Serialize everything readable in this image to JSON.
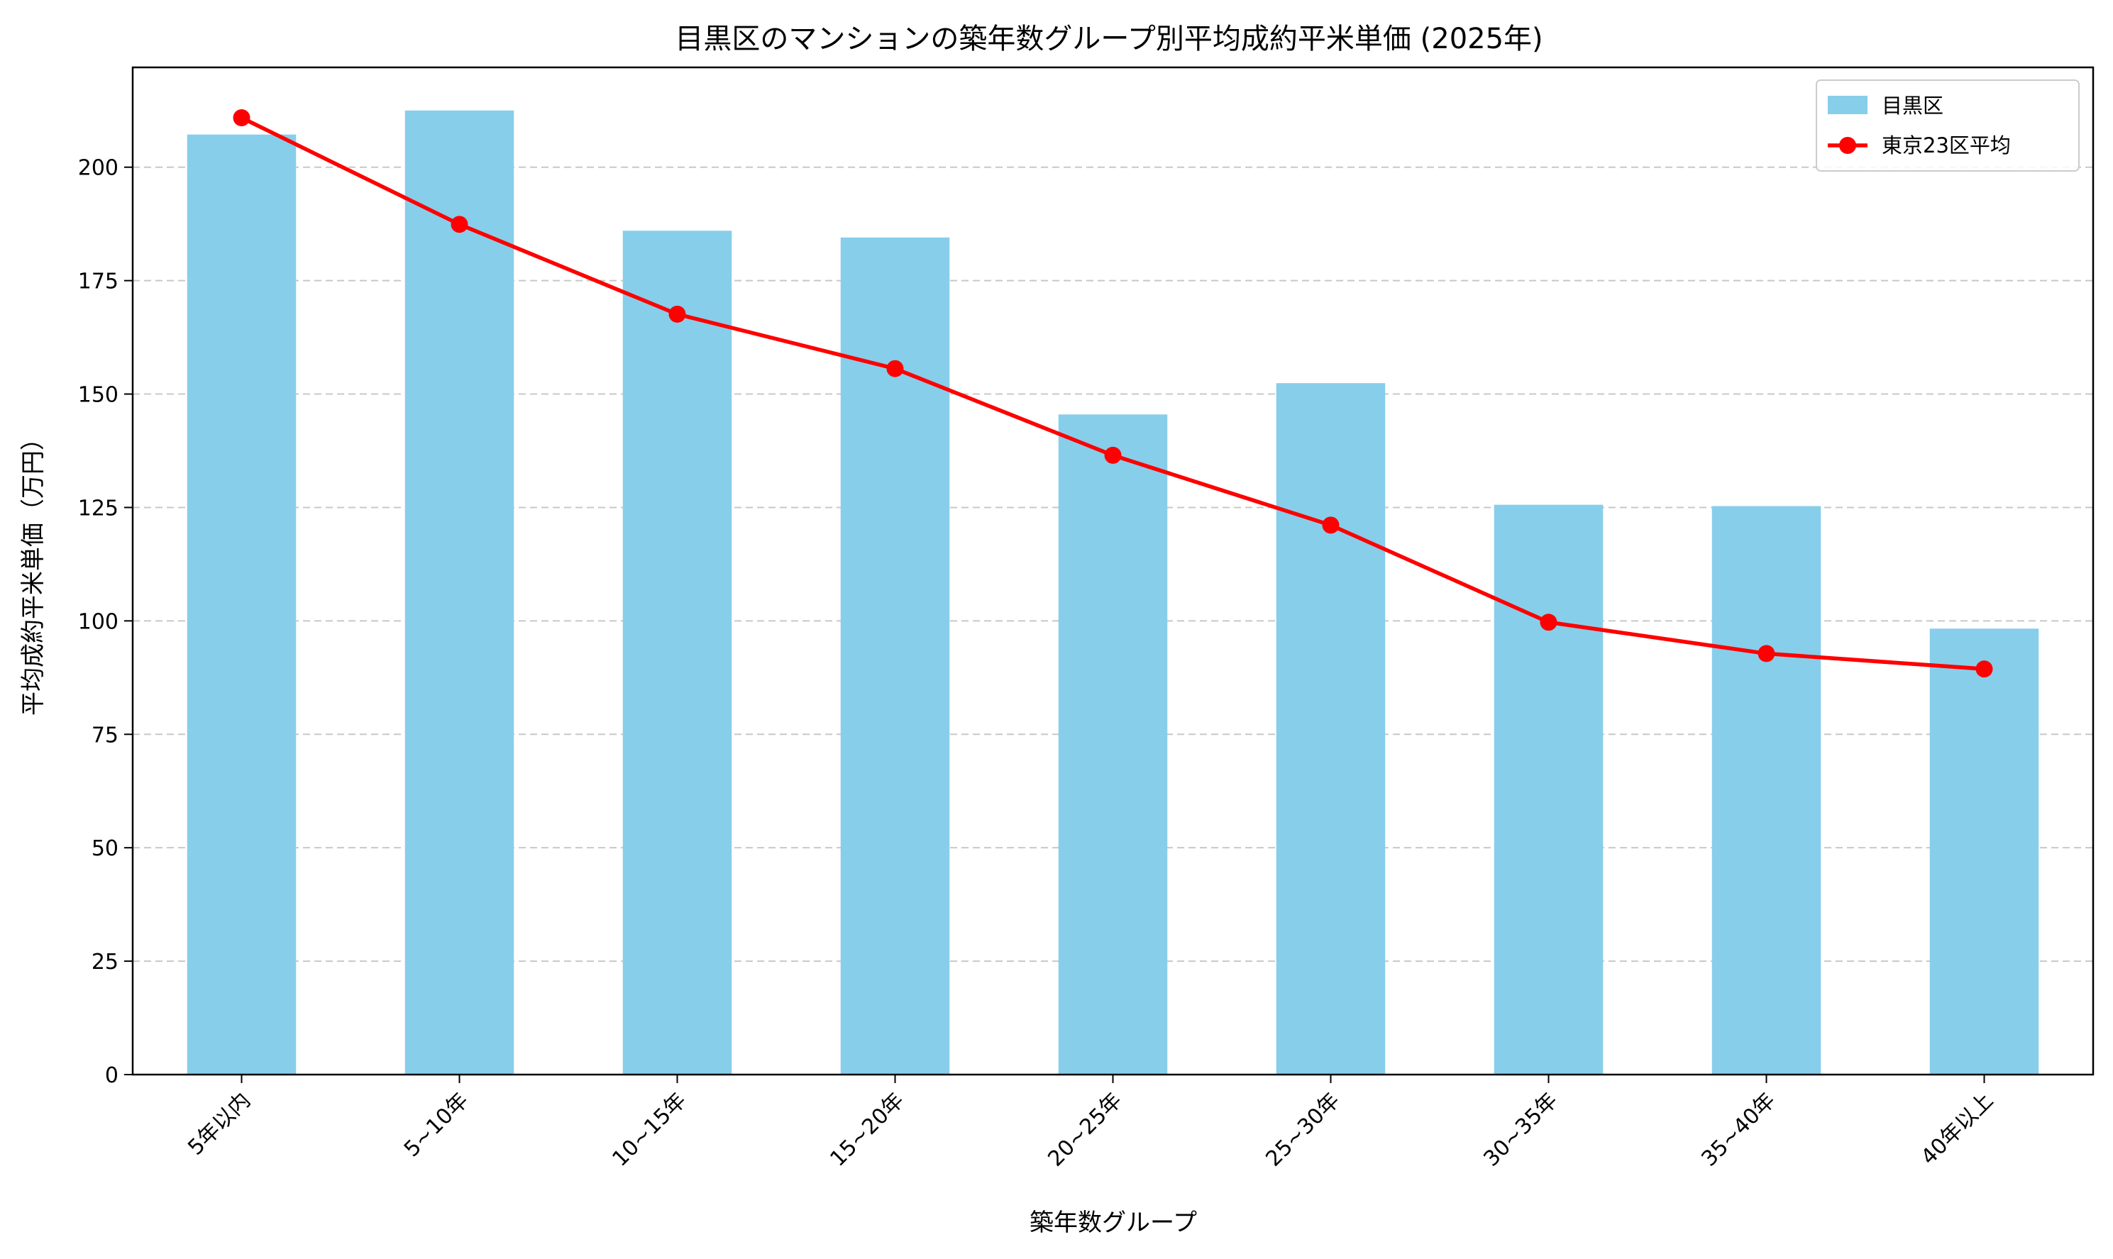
{
  "chart_data": {
    "type": "bar",
    "title": "目黒区のマンションの築年数グループ別平均成約平米単価 (2025年)",
    "xlabel": "築年数グループ",
    "ylabel": "平均成約平米単価（万円）",
    "categories": [
      "5年以内",
      "5~10年",
      "10~15年",
      "15~20年",
      "20~25年",
      "25~30年",
      "30~35年",
      "35~40年",
      "40年以上"
    ],
    "series": [
      {
        "name": "目黒区",
        "kind": "bar",
        "color": "#87CEEB",
        "values": [
          207.2,
          212.5,
          186.0,
          184.5,
          145.5,
          152.4,
          125.6,
          125.3,
          98.3
        ]
      },
      {
        "name": "東京23区平均",
        "kind": "line",
        "color": "#FF0000",
        "values": [
          210.9,
          187.4,
          167.6,
          155.6,
          136.5,
          121.1,
          99.7,
          92.8,
          89.4
        ]
      }
    ],
    "ylim": [
      0,
      222
    ],
    "yticks": [
      0,
      25,
      50,
      75,
      100,
      125,
      150,
      175,
      200
    ],
    "grid": "y-dashed",
    "legend": "top-right"
  }
}
